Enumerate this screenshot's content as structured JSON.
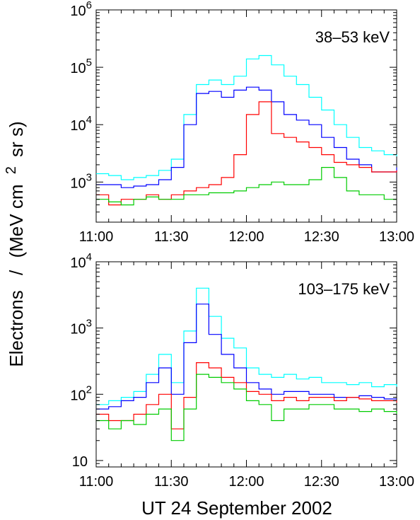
{
  "figure": {
    "ylabel": "Electrons / (MeV cm 2 sr s)",
    "ylabel_main": "Electrons",
    "ylabel_slash": "/",
    "ylabel_unit_a": "(MeV cm",
    "ylabel_unit_sup": "2",
    "ylabel_unit_b": "sr s)",
    "xlabel": "UT 24  September  2002"
  },
  "series_colors": [
    "#00ffff",
    "#0000ff",
    "#ff0000",
    "#00cc00"
  ],
  "chart_data": [
    {
      "type": "line",
      "step": true,
      "annotation": "38–53 keV",
      "xlim": [
        0,
        120
      ],
      "ylim": [
        200,
        1000000
      ],
      "yscale": "log",
      "xticks": [
        0,
        30,
        60,
        90,
        120
      ],
      "xtick_labels": [
        "11:00",
        "11:30",
        "12:00",
        "12:30",
        "13:00"
      ],
      "yticks": [
        1000,
        10000,
        100000,
        1000000
      ],
      "ytick_labels": [
        "10^3",
        "10^4",
        "10^5",
        "10^6"
      ],
      "grid": false,
      "series": [
        {
          "color": "#00ffff",
          "x": [
            0,
            5,
            10,
            15,
            20,
            25,
            30,
            35,
            40,
            45,
            50,
            55,
            60,
            65,
            70,
            75,
            80,
            85,
            90,
            95,
            100,
            105,
            110,
            115,
            120
          ],
          "y": [
            1400,
            1300,
            1100,
            1200,
            1300,
            1600,
            2500,
            15000,
            50000,
            60000,
            50000,
            70000,
            140000,
            160000,
            110000,
            70000,
            50000,
            30000,
            18000,
            10000,
            6000,
            4000,
            3500,
            3000,
            2800
          ]
        },
        {
          "color": "#0000ff",
          "x": [
            0,
            5,
            10,
            15,
            20,
            25,
            30,
            35,
            40,
            45,
            50,
            55,
            60,
            65,
            70,
            75,
            80,
            85,
            90,
            95,
            100,
            105,
            110,
            115,
            120
          ],
          "y": [
            900,
            900,
            800,
            850,
            900,
            1100,
            1800,
            10000,
            35000,
            38000,
            30000,
            40000,
            45000,
            40000,
            25000,
            15000,
            12000,
            10000,
            6000,
            4000,
            2500,
            2000,
            1500,
            1500,
            1800
          ]
        },
        {
          "color": "#ff0000",
          "x": [
            0,
            5,
            10,
            15,
            20,
            25,
            30,
            35,
            40,
            45,
            50,
            55,
            60,
            65,
            70,
            75,
            80,
            85,
            90,
            95,
            100,
            105,
            110,
            115,
            120
          ],
          "y": [
            600,
            400,
            500,
            500,
            600,
            500,
            600,
            700,
            800,
            900,
            1200,
            3000,
            15000,
            25000,
            7000,
            6000,
            5000,
            4000,
            3000,
            2200,
            2000,
            1800,
            1500,
            1500,
            1600
          ]
        },
        {
          "color": "#00cc00",
          "x": [
            0,
            5,
            10,
            15,
            20,
            25,
            30,
            35,
            40,
            45,
            50,
            55,
            60,
            65,
            70,
            75,
            80,
            85,
            90,
            95,
            100,
            105,
            110,
            115,
            120
          ],
          "y": [
            500,
            450,
            400,
            500,
            550,
            500,
            500,
            600,
            600,
            650,
            650,
            700,
            800,
            900,
            1000,
            900,
            900,
            1100,
            1800,
            1200,
            700,
            600,
            600,
            500,
            500
          ]
        }
      ]
    },
    {
      "type": "line",
      "step": true,
      "annotation": "103–175 keV",
      "xlim": [
        0,
        120
      ],
      "ylim": [
        8,
        10000
      ],
      "yscale": "log",
      "xticks": [
        0,
        30,
        60,
        90,
        120
      ],
      "xtick_labels": [
        "11:00",
        "11:30",
        "12:00",
        "12:30",
        "13:00"
      ],
      "yticks": [
        10,
        100,
        1000,
        10000
      ],
      "ytick_labels": [
        "10",
        "10^2",
        "10^3",
        "10^4"
      ],
      "grid": false,
      "series": [
        {
          "color": "#00ffff",
          "x": [
            0,
            5,
            10,
            15,
            20,
            25,
            30,
            35,
            40,
            45,
            50,
            55,
            60,
            65,
            70,
            75,
            80,
            85,
            90,
            95,
            100,
            105,
            110,
            115,
            120
          ],
          "y": [
            70,
            80,
            90,
            110,
            200,
            400,
            150,
            900,
            4000,
            1500,
            700,
            500,
            250,
            200,
            180,
            200,
            170,
            180,
            150,
            150,
            140,
            150,
            130,
            140,
            130
          ]
        },
        {
          "color": "#0000ff",
          "x": [
            0,
            5,
            10,
            15,
            20,
            25,
            30,
            35,
            40,
            45,
            50,
            55,
            60,
            65,
            70,
            75,
            80,
            85,
            90,
            95,
            100,
            105,
            110,
            115,
            120
          ],
          "y": [
            60,
            65,
            80,
            90,
            150,
            250,
            100,
            600,
            2300,
            800,
            400,
            250,
            150,
            120,
            100,
            110,
            110,
            100,
            100,
            90,
            90,
            95,
            90,
            85,
            85
          ]
        },
        {
          "color": "#ff0000",
          "x": [
            0,
            5,
            10,
            15,
            20,
            25,
            30,
            35,
            40,
            45,
            50,
            55,
            60,
            65,
            70,
            75,
            80,
            85,
            90,
            95,
            100,
            105,
            110,
            115,
            120
          ],
          "y": [
            50,
            40,
            40,
            50,
            70,
            100,
            30,
            90,
            300,
            250,
            180,
            150,
            110,
            100,
            80,
            90,
            80,
            90,
            90,
            80,
            90,
            85,
            80,
            80,
            75
          ]
        },
        {
          "color": "#00cc00",
          "x": [
            0,
            5,
            10,
            15,
            20,
            25,
            30,
            35,
            40,
            45,
            50,
            55,
            60,
            65,
            70,
            75,
            80,
            85,
            90,
            95,
            100,
            105,
            110,
            115,
            120
          ],
          "y": [
            40,
            30,
            40,
            35,
            50,
            60,
            20,
            60,
            200,
            180,
            150,
            120,
            80,
            70,
            40,
            60,
            60,
            70,
            70,
            60,
            60,
            55,
            60,
            55,
            50
          ]
        }
      ]
    }
  ]
}
